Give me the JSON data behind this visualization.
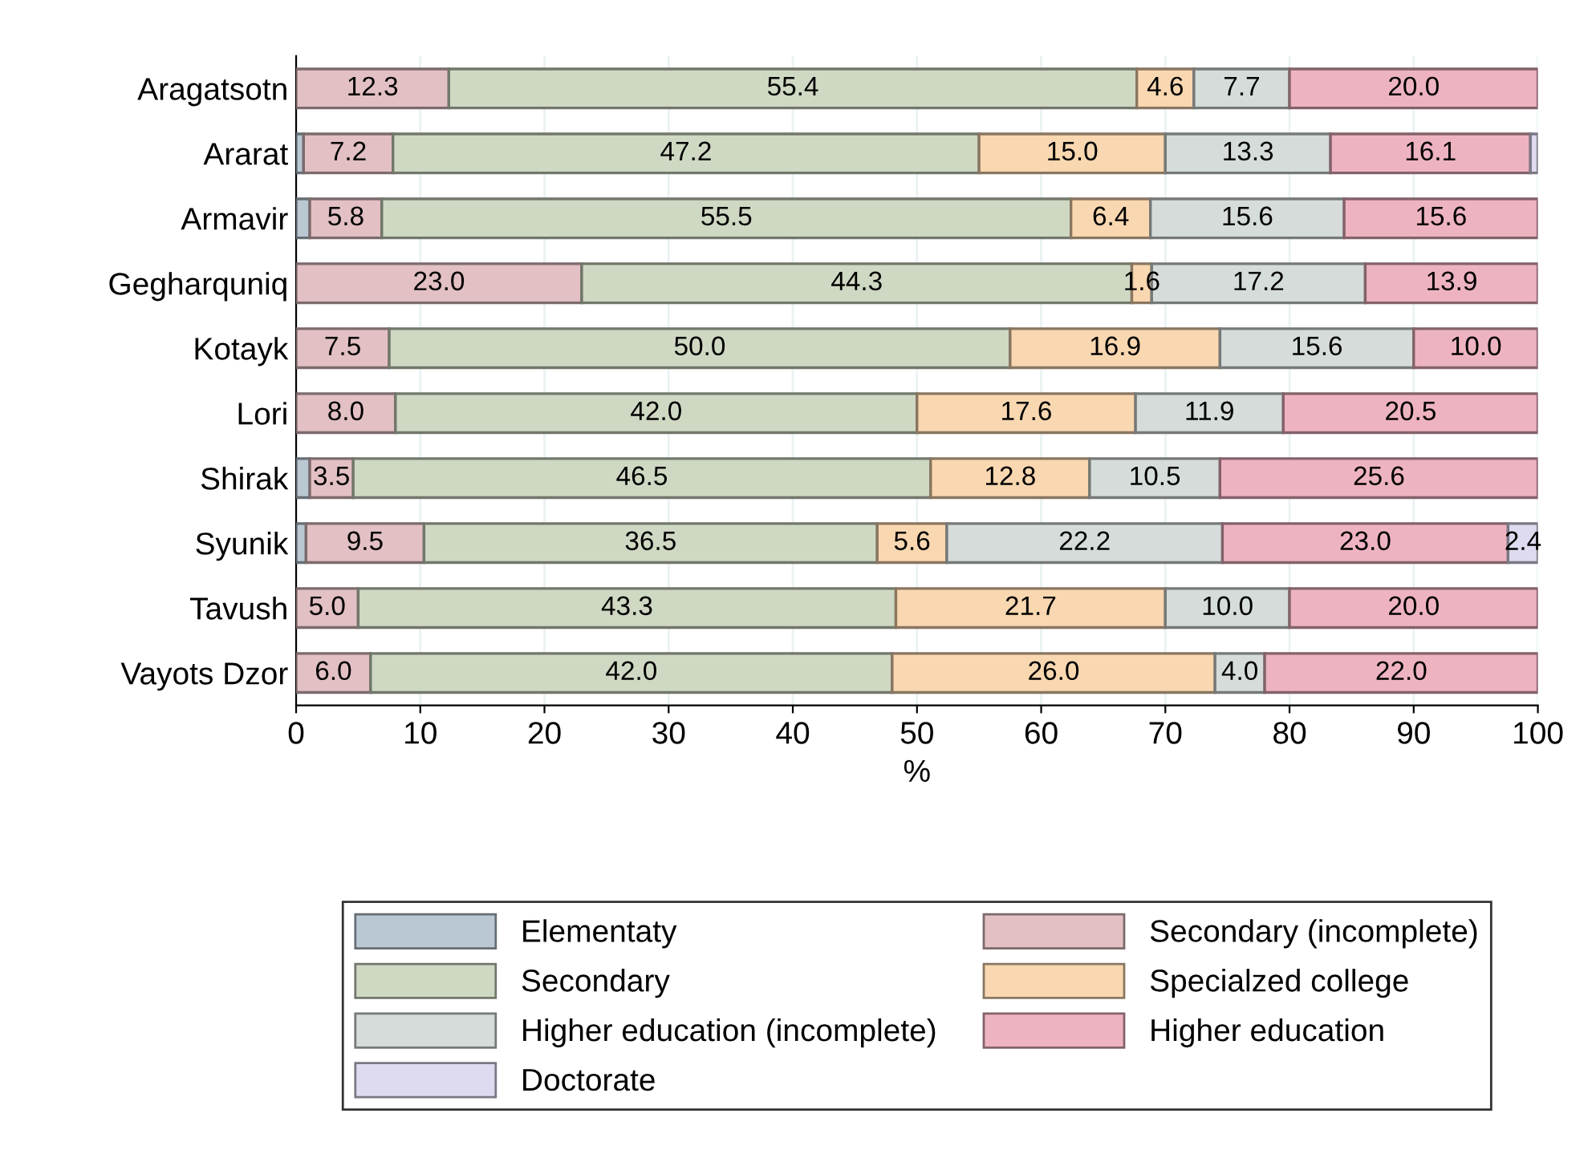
{
  "chart_data": {
    "type": "bar",
    "orientation": "horizontal",
    "stacked": true,
    "xlabel": "%",
    "categories": [
      "Aragatsotn",
      "Ararat",
      "Armavir",
      "Gegharquniq",
      "Kotayk",
      "Lori",
      "Shirak",
      "Syunik",
      "Tavush",
      "Vayots Dzor"
    ],
    "series": [
      {
        "name": "Elementaty",
        "color": "#bac8d4",
        "values": [
          null,
          0.6,
          1.1,
          null,
          null,
          null,
          1.1,
          0.8,
          null,
          null
        ],
        "value_labels": [
          null,
          null,
          null,
          null,
          null,
          null,
          null,
          null,
          null,
          null
        ]
      },
      {
        "name": "Secondary (incomplete)",
        "color": "#e2c0c4",
        "values": [
          12.3,
          7.2,
          5.8,
          23.0,
          7.5,
          8.0,
          3.5,
          9.5,
          5.0,
          6.0
        ],
        "value_labels": [
          "12.3",
          "7.2",
          "5.8",
          "23.0",
          "7.5",
          "8.0",
          "3.5",
          "9.5",
          "5.0",
          "6.0"
        ]
      },
      {
        "name": "Secondary",
        "color": "#cfd8c3",
        "values": [
          55.4,
          47.2,
          55.5,
          44.3,
          50.0,
          42.0,
          46.5,
          36.5,
          43.3,
          42.0
        ],
        "value_labels": [
          "55.4",
          "47.2",
          "55.5",
          "44.3",
          "50.0",
          "42.0",
          "46.5",
          "36.5",
          "43.3",
          "42.0"
        ]
      },
      {
        "name": "Specialzed college",
        "color": "#f9d7b0",
        "values": [
          4.6,
          15.0,
          6.4,
          1.6,
          16.9,
          17.6,
          12.8,
          5.6,
          21.7,
          26.0
        ],
        "value_labels": [
          "4.6",
          "15.0",
          "6.4",
          "1.6",
          "16.9",
          "17.6",
          "12.8",
          "5.6",
          "21.7",
          "26.0"
        ]
      },
      {
        "name": "Higher education (incomplete)",
        "color": "#d5dcd9",
        "values": [
          7.7,
          13.3,
          15.6,
          17.2,
          15.6,
          11.9,
          10.5,
          22.2,
          10.0,
          4.0
        ],
        "value_labels": [
          "7.7",
          "13.3",
          "15.6",
          "17.2",
          "15.6",
          "11.9",
          "10.5",
          "22.2",
          "10.0",
          "4.0"
        ]
      },
      {
        "name": "Higher education",
        "color": "#eeb3c1",
        "values": [
          20.0,
          16.1,
          15.6,
          13.9,
          10.0,
          20.5,
          25.6,
          23.0,
          20.0,
          22.0
        ],
        "value_labels": [
          "20.0",
          "16.1",
          "15.6",
          "13.9",
          "10.0",
          "20.5",
          "25.6",
          "23.0",
          "20.0",
          "22.0"
        ]
      },
      {
        "name": "Doctorate",
        "color": "#dedbf0",
        "values": [
          null,
          0.6,
          null,
          null,
          null,
          null,
          null,
          2.4,
          null,
          null
        ],
        "value_labels": [
          null,
          null,
          null,
          null,
          null,
          null,
          null,
          "2.4",
          null,
          null
        ]
      }
    ],
    "xlim": [
      0,
      100
    ],
    "xticks": [
      0,
      10,
      20,
      30,
      40,
      50,
      60,
      70,
      80,
      90,
      100
    ],
    "grid": "x",
    "legend": "bottom"
  }
}
